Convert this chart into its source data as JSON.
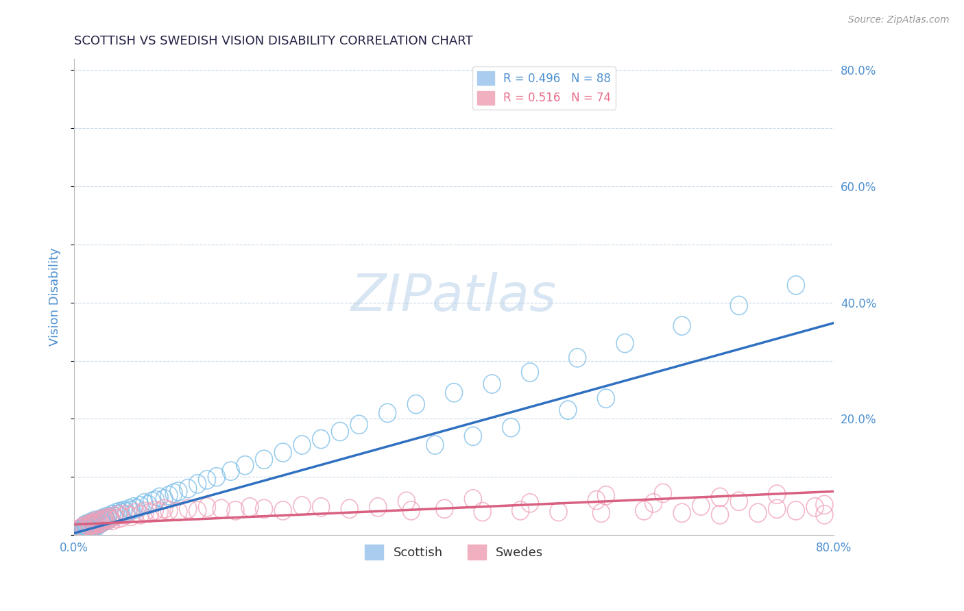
{
  "title": "SCOTTISH VS SWEDISH VISION DISABILITY CORRELATION CHART",
  "source_text": "Source: ZipAtlas.com",
  "ylabel": "Vision Disability",
  "right_yticks": [
    0.0,
    0.2,
    0.4,
    0.6,
    0.8
  ],
  "right_yticklabels": [
    "",
    "20.0%",
    "40.0%",
    "60.0%",
    "80.0%"
  ],
  "xmin": 0.0,
  "xmax": 0.8,
  "ymin": 0.0,
  "ymax": 0.82,
  "watermark": "ZIPatlas",
  "legend_r_entries": [
    {
      "label": "R = 0.496   N = 88",
      "color": "#4e90d0"
    },
    {
      "label": "R = 0.516   N = 74",
      "color": "#e8708a"
    }
  ],
  "legend_labels": [
    "Scottish",
    "Swedes"
  ],
  "scatter_color_scottish": "#7bbde8",
  "scatter_color_swedes": "#f0a0b8",
  "line_color_scottish": "#3070c0",
  "line_color_swedes": "#d86080",
  "title_color": "#222244",
  "axis_label_color": "#4e90d0",
  "grid_color": "#c8d8e8",
  "background_color": "#ffffff",
  "scottish_line_x": [
    0.0,
    0.8
  ],
  "scottish_line_y": [
    0.003,
    0.365
  ],
  "swedes_line_x": [
    0.0,
    0.8
  ],
  "swedes_line_y": [
    0.018,
    0.075
  ],
  "scottish_x": [
    0.005,
    0.007,
    0.008,
    0.009,
    0.01,
    0.01,
    0.011,
    0.012,
    0.012,
    0.013,
    0.013,
    0.014,
    0.015,
    0.015,
    0.016,
    0.016,
    0.017,
    0.018,
    0.018,
    0.019,
    0.02,
    0.02,
    0.021,
    0.022,
    0.022,
    0.023,
    0.024,
    0.025,
    0.026,
    0.027,
    0.028,
    0.029,
    0.03,
    0.031,
    0.032,
    0.033,
    0.035,
    0.036,
    0.038,
    0.04,
    0.042,
    0.044,
    0.046,
    0.048,
    0.05,
    0.052,
    0.055,
    0.058,
    0.06,
    0.063,
    0.066,
    0.07,
    0.074,
    0.078,
    0.082,
    0.086,
    0.09,
    0.095,
    0.1,
    0.105,
    0.11,
    0.12,
    0.13,
    0.14,
    0.15,
    0.165,
    0.18,
    0.2,
    0.22,
    0.24,
    0.26,
    0.28,
    0.3,
    0.33,
    0.36,
    0.4,
    0.44,
    0.48,
    0.53,
    0.58,
    0.64,
    0.7,
    0.76,
    0.38,
    0.42,
    0.46,
    0.52,
    0.56
  ],
  "scottish_y": [
    0.005,
    0.008,
    0.01,
    0.012,
    0.008,
    0.015,
    0.01,
    0.012,
    0.018,
    0.01,
    0.015,
    0.012,
    0.01,
    0.018,
    0.012,
    0.02,
    0.015,
    0.01,
    0.022,
    0.015,
    0.012,
    0.02,
    0.015,
    0.018,
    0.025,
    0.02,
    0.015,
    0.022,
    0.018,
    0.025,
    0.02,
    0.028,
    0.022,
    0.025,
    0.03,
    0.028,
    0.025,
    0.032,
    0.03,
    0.035,
    0.032,
    0.038,
    0.035,
    0.04,
    0.038,
    0.042,
    0.04,
    0.045,
    0.042,
    0.048,
    0.045,
    0.05,
    0.055,
    0.052,
    0.058,
    0.06,
    0.065,
    0.062,
    0.068,
    0.072,
    0.075,
    0.08,
    0.088,
    0.095,
    0.1,
    0.11,
    0.12,
    0.13,
    0.142,
    0.155,
    0.165,
    0.178,
    0.19,
    0.21,
    0.225,
    0.245,
    0.26,
    0.28,
    0.305,
    0.33,
    0.36,
    0.395,
    0.43,
    0.155,
    0.17,
    0.185,
    0.215,
    0.235
  ],
  "swedes_x": [
    0.005,
    0.008,
    0.01,
    0.012,
    0.015,
    0.016,
    0.018,
    0.019,
    0.02,
    0.021,
    0.022,
    0.024,
    0.025,
    0.027,
    0.028,
    0.03,
    0.032,
    0.034,
    0.036,
    0.038,
    0.04,
    0.042,
    0.045,
    0.048,
    0.05,
    0.055,
    0.06,
    0.065,
    0.07,
    0.075,
    0.08,
    0.085,
    0.09,
    0.095,
    0.1,
    0.11,
    0.12,
    0.13,
    0.14,
    0.155,
    0.17,
    0.185,
    0.2,
    0.22,
    0.24,
    0.26,
    0.29,
    0.32,
    0.355,
    0.39,
    0.43,
    0.47,
    0.51,
    0.555,
    0.6,
    0.64,
    0.68,
    0.72,
    0.76,
    0.79,
    0.35,
    0.42,
    0.48,
    0.55,
    0.61,
    0.66,
    0.7,
    0.74,
    0.78,
    0.79,
    0.56,
    0.62,
    0.68,
    0.74
  ],
  "swedes_y": [
    0.01,
    0.012,
    0.015,
    0.012,
    0.018,
    0.015,
    0.02,
    0.018,
    0.015,
    0.022,
    0.02,
    0.018,
    0.025,
    0.022,
    0.02,
    0.025,
    0.028,
    0.025,
    0.03,
    0.028,
    0.025,
    0.032,
    0.028,
    0.035,
    0.03,
    0.035,
    0.032,
    0.038,
    0.035,
    0.04,
    0.038,
    0.042,
    0.04,
    0.045,
    0.042,
    0.04,
    0.045,
    0.042,
    0.048,
    0.045,
    0.042,
    0.048,
    0.045,
    0.042,
    0.05,
    0.048,
    0.045,
    0.048,
    0.042,
    0.045,
    0.04,
    0.042,
    0.04,
    0.038,
    0.042,
    0.038,
    0.035,
    0.038,
    0.042,
    0.035,
    0.058,
    0.062,
    0.055,
    0.06,
    0.055,
    0.05,
    0.058,
    0.045,
    0.048,
    0.052,
    0.068,
    0.072,
    0.065,
    0.07
  ]
}
